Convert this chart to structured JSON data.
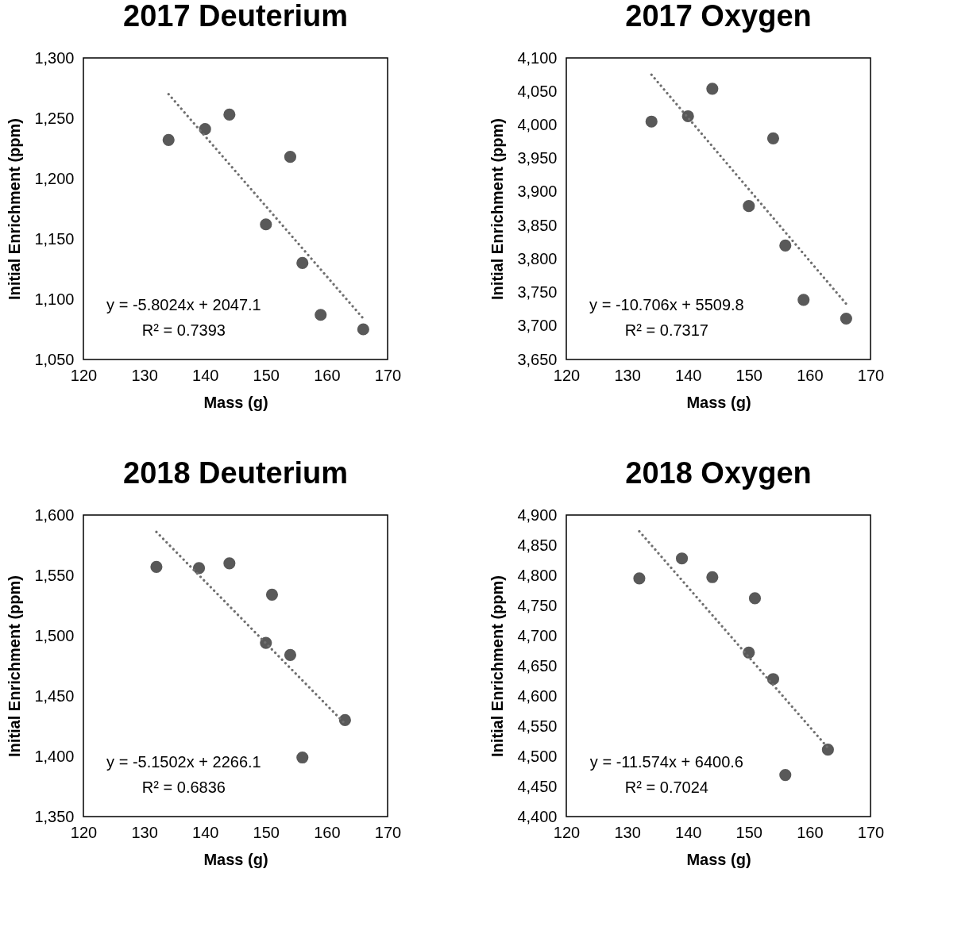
{
  "chart_data": [
    {
      "type": "scatter",
      "title": "2017 Deuterium",
      "xlabel": "Mass (g)",
      "ylabel": "Initial Enrichment (ppm)",
      "xlim": [
        120,
        170
      ],
      "xticks": [
        120,
        130,
        140,
        150,
        160,
        170
      ],
      "ylim": [
        1050,
        1300
      ],
      "yticks": [
        {
          "value": 1050,
          "label": "1,050"
        },
        {
          "value": 1100,
          "label": "1,100"
        },
        {
          "value": 1150,
          "label": "1,150"
        },
        {
          "value": 1200,
          "label": "1,200"
        },
        {
          "value": 1250,
          "label": "1,250"
        },
        {
          "value": 1300,
          "label": "1,300"
        }
      ],
      "annotations": [
        "y = -5.8024x + 2047.1",
        "R² = 0.7393"
      ],
      "series": [
        {
          "marker": "circle",
          "color": "#595959",
          "x": [
            134,
            140,
            144,
            154,
            150,
            156,
            159,
            166
          ],
          "values": [
            1232,
            1241,
            1253,
            1218,
            1162,
            1130,
            1087,
            1075
          ]
        },
        {
          "type": "line",
          "line_style": "dotted",
          "color": "#6f6f6f",
          "x": [
            134,
            166
          ],
          "values": [
            1270,
            1084
          ]
        }
      ]
    },
    {
      "type": "scatter",
      "title": "2017 Oxygen",
      "xlabel": "Mass (g)",
      "ylabel": "Initial Enrichment (ppm)",
      "xlim": [
        120,
        170
      ],
      "xticks": [
        120,
        130,
        140,
        150,
        160,
        170
      ],
      "ylim": [
        3650,
        4100
      ],
      "yticks": [
        {
          "value": 3650,
          "label": "3,650"
        },
        {
          "value": 3700,
          "label": "3,700"
        },
        {
          "value": 3750,
          "label": "3,750"
        },
        {
          "value": 3800,
          "label": "3,800"
        },
        {
          "value": 3850,
          "label": "3,850"
        },
        {
          "value": 3900,
          "label": "3,900"
        },
        {
          "value": 3950,
          "label": "3,950"
        },
        {
          "value": 4000,
          "label": "4,000"
        },
        {
          "value": 4050,
          "label": "4,050"
        },
        {
          "value": 4100,
          "label": "4,100"
        }
      ],
      "annotations": [
        "y = -10.706x + 5509.8",
        "R² = 0.7317"
      ],
      "series": [
        {
          "marker": "circle",
          "color": "#595959",
          "x": [
            134,
            140,
            144,
            154,
            150,
            156,
            159,
            166
          ],
          "values": [
            4005,
            4013,
            4054,
            3980,
            3879,
            3820,
            3739,
            3711
          ]
        },
        {
          "type": "line",
          "line_style": "dotted",
          "color": "#6f6f6f",
          "x": [
            134,
            166
          ],
          "values": [
            4075,
            3733
          ]
        }
      ]
    },
    {
      "type": "scatter",
      "title": "2018 Deuterium",
      "xlabel": "Mass (g)",
      "ylabel": "Initial Enrichment (ppm)",
      "xlim": [
        120,
        170
      ],
      "xticks": [
        120,
        130,
        140,
        150,
        160,
        170
      ],
      "ylim": [
        1350,
        1600
      ],
      "yticks": [
        {
          "value": 1350,
          "label": "1,350"
        },
        {
          "value": 1400,
          "label": "1,400"
        },
        {
          "value": 1450,
          "label": "1,450"
        },
        {
          "value": 1500,
          "label": "1,500"
        },
        {
          "value": 1550,
          "label": "1,550"
        },
        {
          "value": 1600,
          "label": "1,600"
        }
      ],
      "annotations": [
        "y = -5.1502x + 2266.1",
        "R² = 0.6836"
      ],
      "series": [
        {
          "marker": "circle",
          "color": "#595959",
          "x": [
            132,
            139,
            144,
            151,
            150,
            154,
            163,
            156
          ],
          "values": [
            1557,
            1556,
            1560,
            1534,
            1494,
            1484,
            1430,
            1399
          ]
        },
        {
          "type": "line",
          "line_style": "dotted",
          "color": "#6f6f6f",
          "x": [
            132,
            163
          ],
          "values": [
            1586,
            1427
          ]
        }
      ]
    },
    {
      "type": "scatter",
      "title": "2018 Oxygen",
      "xlabel": "Mass (g)",
      "ylabel": "Initial Enrichment (ppm)",
      "xlim": [
        120,
        170
      ],
      "xticks": [
        120,
        130,
        140,
        150,
        160,
        170
      ],
      "ylim": [
        4400,
        4900
      ],
      "yticks": [
        {
          "value": 4400,
          "label": "4,400"
        },
        {
          "value": 4450,
          "label": "4,450"
        },
        {
          "value": 4500,
          "label": "4,500"
        },
        {
          "value": 4550,
          "label": "4,550"
        },
        {
          "value": 4600,
          "label": "4,600"
        },
        {
          "value": 4650,
          "label": "4,650"
        },
        {
          "value": 4700,
          "label": "4,700"
        },
        {
          "value": 4750,
          "label": "4,750"
        },
        {
          "value": 4800,
          "label": "4,800"
        },
        {
          "value": 4850,
          "label": "4,850"
        },
        {
          "value": 4900,
          "label": "4,900"
        }
      ],
      "annotations": [
        "y = -11.574x + 6400.6",
        "R² = 0.7024"
      ],
      "series": [
        {
          "marker": "circle",
          "color": "#595959",
          "x": [
            132,
            139,
            144,
            151,
            150,
            154,
            163,
            156
          ],
          "values": [
            4795,
            4828,
            4797,
            4762,
            4672,
            4628,
            4511,
            4469
          ]
        },
        {
          "type": "line",
          "line_style": "dotted",
          "color": "#6f6f6f",
          "x": [
            132,
            163
          ],
          "values": [
            4873,
            4514
          ]
        }
      ]
    }
  ]
}
